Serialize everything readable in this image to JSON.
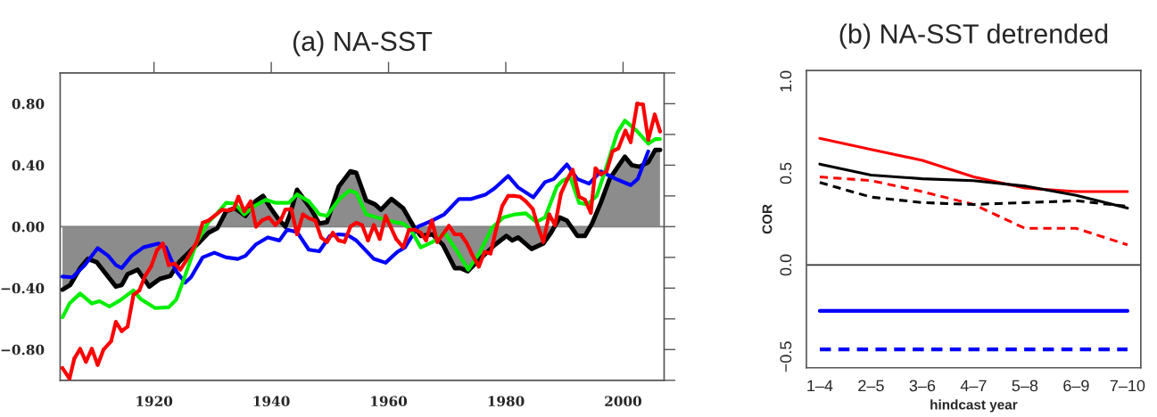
{
  "chart_data": [
    {
      "type": "line",
      "title": "(a) NA-SST",
      "xlim": [
        1904,
        2007
      ],
      "ylim": [
        -1.0,
        1.0
      ],
      "xticks": [
        1920,
        1940,
        1960,
        1980,
        2000
      ],
      "yticks": [
        {
          "value": -1.0,
          "label": null
        },
        {
          "value": -0.8,
          "label": "−0.80"
        },
        {
          "value": -0.6,
          "label": null
        },
        {
          "value": -0.4,
          "label": "−0.40"
        },
        {
          "value": -0.2,
          "label": null
        },
        {
          "value": 0.0,
          "label": "0.00"
        },
        {
          "value": 0.2,
          "label": null
        },
        {
          "value": 0.4,
          "label": "0.40"
        },
        {
          "value": 0.6,
          "label": null
        },
        {
          "value": 0.8,
          "label": "0.80"
        },
        {
          "value": 1.0,
          "label": null
        }
      ],
      "grid": false,
      "legend": false,
      "ref_lines": [
        {
          "axis": "y",
          "value": 0.0,
          "color": "#777777"
        }
      ],
      "series": [
        {
          "type": "area",
          "color": "#000000",
          "x": [
            1904.4,
            1905.7,
            1907.4,
            1908.7,
            1910.2,
            1913.5,
            1914.5,
            1915.5,
            1917.2,
            1919.2,
            1921,
            1922.8,
            1924.3,
            1926.3,
            1927.8,
            1929.3,
            1930.8,
            1932.3,
            1933.8,
            1935.6,
            1937.3,
            1938.6,
            1939.9,
            1941.2,
            1942.4,
            1943.2,
            1944.4,
            1946.7,
            1948.2,
            1949.5,
            1951.5,
            1953.5,
            1954.5,
            1956.2,
            1957.7,
            1958.7,
            1960.5,
            1962.5,
            1964.3,
            1965.5,
            1967.5,
            1969.3,
            1971.3,
            1972.3,
            1973.5,
            1975.6,
            1978.1,
            1980.1,
            1981.1,
            1982.1,
            1984.4,
            1986.4,
            1987.7,
            1989.2,
            1990.4,
            1992.2,
            1993.5,
            1994.7,
            1996.2,
            1997.7,
            1999.3,
            2000.3,
            2001.5,
            2002.8,
            2004.3,
            2005.5,
            2006.3
          ],
          "values": [
            -0.41,
            -0.38,
            -0.27,
            -0.21,
            -0.23,
            -0.39,
            -0.38,
            -0.31,
            -0.28,
            -0.39,
            -0.34,
            -0.32,
            -0.23,
            -0.155,
            -0.1,
            -0.04,
            -0.01,
            0.1,
            0.12,
            0.07,
            0.165,
            0.2,
            0.12,
            0.05,
            0.0,
            0.08,
            0.24,
            0.12,
            0.02,
            0.03,
            0.26,
            0.36,
            0.35,
            0.17,
            0.145,
            0.11,
            0.18,
            0.12,
            0.0,
            -0.06,
            -0.05,
            -0.12,
            -0.27,
            -0.27,
            -0.29,
            -0.21,
            -0.12,
            -0.06,
            -0.09,
            -0.07,
            -0.145,
            -0.11,
            -0.04,
            0.06,
            0.04,
            -0.06,
            -0.06,
            0.02,
            0.155,
            0.31,
            0.4,
            0.455,
            0.4,
            0.39,
            0.42,
            0.5,
            0.5
          ]
        },
        {
          "color": "#0000ff",
          "x": [
            1904.4,
            1906.1,
            1908.2,
            1910.4,
            1912.2,
            1913.5,
            1914.5,
            1916.2,
            1918.2,
            1920.8,
            1922,
            1923.8,
            1925.3,
            1926.3,
            1928.3,
            1930.3,
            1932.3,
            1934.3,
            1935.6,
            1937.4,
            1939.4,
            1941.4,
            1942.7,
            1944.4,
            1946.4,
            1948.2,
            1950,
            1951.5,
            1953,
            1954.5,
            1957.5,
            1959.5,
            1961.5,
            1962.8,
            1965,
            1967.5,
            1969.5,
            1972,
            1974.1,
            1976.6,
            1978.1,
            1980.4,
            1982.1,
            1984.7,
            1986.7,
            1988.2,
            1990.4,
            1992.2,
            1994.2,
            1996.2,
            1998.8,
            2001.3,
            2002.5,
            2004.3
          ],
          "values": [
            -0.325,
            -0.33,
            -0.25,
            -0.14,
            -0.19,
            -0.25,
            -0.27,
            -0.19,
            -0.135,
            -0.11,
            -0.135,
            -0.29,
            -0.365,
            -0.33,
            -0.2,
            -0.17,
            -0.2,
            -0.21,
            -0.19,
            -0.115,
            -0.07,
            -0.09,
            -0.02,
            -0.035,
            -0.15,
            -0.16,
            -0.06,
            -0.05,
            -0.055,
            -0.09,
            -0.21,
            -0.235,
            -0.165,
            -0.135,
            0.0,
            0.04,
            0.08,
            0.18,
            0.18,
            0.21,
            0.25,
            0.33,
            0.255,
            0.19,
            0.29,
            0.31,
            0.405,
            0.31,
            0.28,
            0.36,
            0.31,
            0.27,
            0.31,
            0.49
          ]
        },
        {
          "color": "#00ee00",
          "x": [
            1904.4,
            1905.6,
            1907.4,
            1909.4,
            1910.7,
            1912.4,
            1914.2,
            1916.5,
            1917.7,
            1920.2,
            1922.5,
            1923.8,
            1925.3,
            1927.3,
            1929.3,
            1930.8,
            1932.3,
            1933.8,
            1935.4,
            1937.4,
            1939.1,
            1940.7,
            1943,
            1944.4,
            1946.4,
            1948.2,
            1949.5,
            1951.5,
            1953.3,
            1954.5,
            1956.2,
            1958,
            1961,
            1962.5,
            1963.8,
            1965.5,
            1967.5,
            1969.6,
            1971.6,
            1973.6,
            1975.6,
            1977.6,
            1979.6,
            1981.6,
            1983.4,
            1985.2,
            1986.7,
            1988.7,
            1989.7,
            1991,
            1992.5,
            1994,
            1995.5,
            1997,
            1999,
            2000.3,
            2002.3,
            2004.3,
            2005.5,
            2006.3
          ],
          "values": [
            -0.59,
            -0.5,
            -0.435,
            -0.5,
            -0.485,
            -0.52,
            -0.48,
            -0.415,
            -0.47,
            -0.53,
            -0.525,
            -0.475,
            -0.32,
            -0.1,
            0.03,
            0.087,
            0.155,
            0.15,
            0.08,
            0.14,
            0.175,
            0.155,
            0.155,
            0.21,
            0.165,
            0.08,
            0.07,
            0.175,
            0.235,
            0.22,
            0.08,
            0.06,
            0.03,
            0.02,
            -0.02,
            -0.135,
            -0.1,
            -0.04,
            -0.155,
            -0.28,
            -0.165,
            -0.01,
            0.06,
            0.08,
            0.087,
            0.03,
            0.06,
            0.26,
            0.3,
            0.32,
            0.155,
            0.145,
            0.2,
            0.37,
            0.61,
            0.69,
            0.625,
            0.54,
            0.57,
            0.57
          ]
        },
        {
          "color": "#ff0000",
          "marker": "circle",
          "x": [
            1904.4,
            1905.6,
            1906.4,
            1907.4,
            1908.4,
            1909.4,
            1910.4,
            1911.4,
            1912.7,
            1913.5,
            1914.5,
            1915.5,
            1916.5,
            1917.5,
            1918.5,
            1919.5,
            1920.5,
            1921.5,
            1922.5,
            1923.5,
            1924.5,
            1925.5,
            1927.3,
            1928.3,
            1929.3,
            1930.3,
            1931.6,
            1932.6,
            1933.6,
            1934.4,
            1935.4,
            1936.5,
            1937.4,
            1938.4,
            1939.6,
            1940.7,
            1941.7,
            1942.4,
            1943.4,
            1944.4,
            1945.4,
            1946.4,
            1947.5,
            1948.5,
            1949.5,
            1950.5,
            1951.5,
            1952.5,
            1953.5,
            1954.5,
            1955.5,
            1956.5,
            1957.5,
            1958.5,
            1959.5,
            1961.3,
            1962.5,
            1963.5,
            1964.5,
            1965.5,
            1966.4,
            1967.4,
            1968.3,
            1970.3,
            1971.3,
            1972.3,
            1973.3,
            1974.3,
            1975.4,
            1976.4,
            1977.4,
            1978.4,
            1979.4,
            1980.4,
            1981.4,
            1982.4,
            1983.4,
            1984.6,
            1985.4,
            1986.4,
            1987.4,
            1988.4,
            1989.4,
            1990.4,
            1991.4,
            1992.5,
            1993.5,
            1994.5,
            1995.3,
            1996.2,
            1997.2,
            1998.2,
            1999.2,
            2000.4,
            2001.3,
            2002.4,
            2003.4,
            2004.3,
            2005.4,
            2006.3
          ],
          "values": [
            -0.92,
            -0.99,
            -0.86,
            -0.795,
            -0.88,
            -0.795,
            -0.9,
            -0.8,
            -0.745,
            -0.62,
            -0.68,
            -0.65,
            -0.445,
            -0.415,
            -0.32,
            -0.26,
            -0.155,
            -0.11,
            -0.25,
            -0.24,
            -0.28,
            -0.22,
            -0.1,
            0.025,
            0.04,
            0.07,
            0.11,
            0.105,
            0.115,
            0.195,
            0.1,
            0.165,
            0.0,
            0.04,
            0.06,
            0.01,
            0.05,
            0.11,
            0.115,
            -0.05,
            0.08,
            0.055,
            0.04,
            -0.07,
            -0.1,
            -0.04,
            -0.09,
            -0.1,
            0.0,
            0.025,
            0.01,
            -0.09,
            0.01,
            -0.08,
            0.07,
            -0.08,
            -0.135,
            -0.02,
            -0.02,
            -0.04,
            -0.09,
            0.04,
            -0.1,
            0.005,
            -0.05,
            -0.05,
            -0.105,
            -0.185,
            -0.26,
            -0.165,
            -0.175,
            -0.01,
            0.135,
            0.2,
            0.2,
            0.195,
            0.165,
            0.115,
            0.01,
            -0.1,
            0.08,
            0.01,
            0.215,
            0.3,
            0.37,
            0.195,
            0.175,
            0.09,
            0.38,
            0.34,
            0.36,
            0.49,
            0.51,
            0.625,
            0.55,
            0.8,
            0.795,
            0.565,
            0.73,
            0.62
          ]
        }
      ]
    },
    {
      "type": "line",
      "title": "(b) NA-SST detrended",
      "xlabel": "hindcast year",
      "ylabel": "COR",
      "categories": [
        "1–4",
        "2–5",
        "3–6",
        "4–7",
        "5–8",
        "6–9",
        "7–10"
      ],
      "ylim": [
        -0.56,
        1.06
      ],
      "yticks": [
        {
          "value": -0.5,
          "label": "−0.5"
        },
        {
          "value": 0.0,
          "label": "0.0"
        },
        {
          "value": 0.5,
          "label": "0.5"
        },
        {
          "value": 1.0,
          "label": "1.0"
        }
      ],
      "grid": false,
      "legend": false,
      "ref_lines": [
        {
          "axis": "y",
          "value": 0.0,
          "color": "#333333"
        }
      ],
      "series": [
        {
          "color": "#ff0000",
          "line_style": "solid",
          "values": [
            0.69,
            0.63,
            0.57,
            0.48,
            0.42,
            0.4,
            0.4
          ]
        },
        {
          "color": "#000000",
          "line_style": "solid",
          "values": [
            0.55,
            0.49,
            0.47,
            0.46,
            0.43,
            0.38,
            0.31
          ]
        },
        {
          "color": "#ff0000",
          "line_style": "dashed",
          "values": [
            0.48,
            0.46,
            0.4,
            0.33,
            0.2,
            0.2,
            0.11
          ]
        },
        {
          "color": "#000000",
          "line_style": "dashed",
          "values": [
            0.45,
            0.37,
            0.34,
            0.33,
            0.34,
            0.35,
            0.32
          ]
        },
        {
          "color": "#0000ff",
          "line_style": "solid",
          "values": [
            -0.25,
            -0.25,
            -0.25,
            -0.25,
            -0.25,
            -0.25,
            -0.25
          ]
        },
        {
          "color": "#0000ff",
          "line_style": "dashed",
          "values": [
            -0.46,
            -0.46,
            -0.46,
            -0.46,
            -0.46,
            -0.46,
            -0.46
          ]
        }
      ]
    }
  ]
}
